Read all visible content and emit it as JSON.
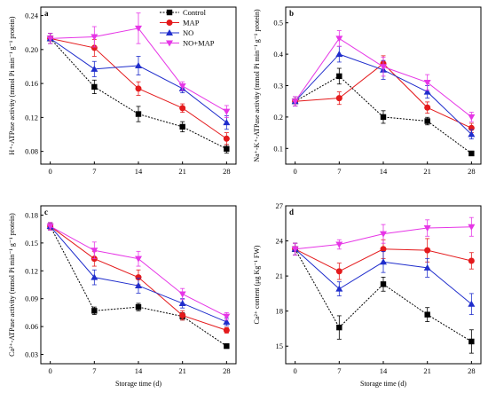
{
  "legend": {
    "entries": [
      {
        "label": "Control",
        "color": "#000000",
        "marker": "square",
        "dash": "2,1.5"
      },
      {
        "label": "MAP",
        "color": "#e41a1c",
        "marker": "circle",
        "dash": ""
      },
      {
        "label": "NO",
        "color": "#1f2dcc",
        "marker": "triangle-up",
        "dash": ""
      },
      {
        "label": "NO+MAP",
        "color": "#e636e6",
        "marker": "triangle-down",
        "dash": ""
      }
    ]
  },
  "chart_data": [
    {
      "type": "line",
      "panel": "a",
      "xlabel": "",
      "ylabel": "H⁺-ATPase activity (mmol Pi min⁻¹ g⁻¹ protein)",
      "x": [
        0,
        7,
        14,
        21,
        28
      ],
      "ylim": [
        0.065,
        0.25
      ],
      "yticks": [
        0.08,
        0.12,
        0.16,
        0.2,
        0.24
      ],
      "ytick_labels": [
        "0.08",
        "0.12",
        "0.16",
        "0.20",
        "0.24"
      ],
      "series": [
        {
          "name": "Control",
          "values": [
            0.213,
            0.156,
            0.124,
            0.109,
            0.083
          ],
          "err": [
            0.006,
            0.008,
            0.009,
            0.006,
            0.005
          ]
        },
        {
          "name": "MAP",
          "values": [
            0.213,
            0.202,
            0.154,
            0.131,
            0.095
          ],
          "err": [
            0.006,
            0.01,
            0.008,
            0.005,
            0.007
          ]
        },
        {
          "name": "NO",
          "values": [
            0.213,
            0.177,
            0.181,
            0.154,
            0.114
          ],
          "err": [
            0.006,
            0.009,
            0.011,
            0.005,
            0.008
          ]
        },
        {
          "name": "NO+MAP",
          "values": [
            0.213,
            0.215,
            0.225,
            0.157,
            0.127
          ],
          "err": [
            0.006,
            0.012,
            0.018,
            0.005,
            0.007
          ]
        }
      ]
    },
    {
      "type": "line",
      "panel": "b",
      "xlabel": "",
      "ylabel": "Na⁺-K⁺-ATPase activity (mmol Pi min⁻¹ g⁻¹ protein)",
      "x": [
        0,
        7,
        14,
        21,
        28
      ],
      "ylim": [
        0.05,
        0.55
      ],
      "yticks": [
        0.1,
        0.2,
        0.3,
        0.4,
        0.5
      ],
      "ytick_labels": [
        "0.1",
        "0.2",
        "0.3",
        "0.4",
        "0.5"
      ],
      "series": [
        {
          "name": "Control",
          "values": [
            0.25,
            0.33,
            0.2,
            0.187,
            0.084
          ],
          "err": [
            0.015,
            0.025,
            0.02,
            0.012,
            0.005
          ]
        },
        {
          "name": "MAP",
          "values": [
            0.25,
            0.26,
            0.37,
            0.23,
            0.165
          ],
          "err": [
            0.015,
            0.02,
            0.025,
            0.018,
            0.015
          ]
        },
        {
          "name": "NO",
          "values": [
            0.25,
            0.4,
            0.35,
            0.28,
            0.145
          ],
          "err": [
            0.015,
            0.025,
            0.03,
            0.02,
            0.015
          ]
        },
        {
          "name": "NO+MAP",
          "values": [
            0.25,
            0.45,
            0.36,
            0.31,
            0.2
          ],
          "err": [
            0.015,
            0.025,
            0.03,
            0.025,
            0.015
          ]
        }
      ]
    },
    {
      "type": "line",
      "panel": "c",
      "xlabel": "Storage time (d)",
      "ylabel": "Ca²⁺-ATPase activity (mmol Pi min⁻¹ g⁻¹ protein)",
      "x": [
        0,
        7,
        14,
        21,
        28
      ],
      "ylim": [
        0.02,
        0.19
      ],
      "yticks": [
        0.03,
        0.06,
        0.09,
        0.12,
        0.15,
        0.18
      ],
      "ytick_labels": [
        "0.03",
        "0.06",
        "0.09",
        "0.12",
        "0.15",
        "0.18"
      ],
      "series": [
        {
          "name": "Control",
          "values": [
            0.168,
            0.077,
            0.081,
            0.071,
            0.039
          ],
          "err": [
            0.004,
            0.004,
            0.004,
            0.004,
            0.002
          ]
        },
        {
          "name": "MAP",
          "values": [
            0.168,
            0.133,
            0.113,
            0.072,
            0.056
          ],
          "err": [
            0.004,
            0.008,
            0.008,
            0.005,
            0.003
          ]
        },
        {
          "name": "NO",
          "values": [
            0.168,
            0.113,
            0.104,
            0.085,
            0.065
          ],
          "err": [
            0.004,
            0.008,
            0.008,
            0.005,
            0.004
          ]
        },
        {
          "name": "NO+MAP",
          "values": [
            0.168,
            0.142,
            0.133,
            0.095,
            0.071
          ],
          "err": [
            0.004,
            0.009,
            0.008,
            0.006,
            0.004
          ]
        }
      ]
    },
    {
      "type": "line",
      "panel": "d",
      "xlabel": "Storage time (d)",
      "ylabel": "Ca²⁺ content (μg Kg⁻¹ FW)",
      "x": [
        0,
        7,
        14,
        21,
        28
      ],
      "ylim": [
        13.5,
        27
      ],
      "yticks": [
        15,
        18,
        21,
        24,
        27
      ],
      "ytick_labels": [
        "15",
        "18",
        "21",
        "24",
        "27"
      ],
      "series": [
        {
          "name": "Control",
          "values": [
            23.3,
            16.6,
            20.3,
            17.7,
            15.4
          ],
          "err": [
            0.5,
            1.0,
            0.6,
            0.6,
            1.0
          ]
        },
        {
          "name": "MAP",
          "values": [
            23.3,
            21.4,
            23.3,
            23.2,
            22.3
          ],
          "err": [
            0.5,
            0.7,
            0.8,
            1.0,
            0.7
          ]
        },
        {
          "name": "NO",
          "values": [
            23.3,
            19.9,
            22.2,
            21.7,
            18.6
          ],
          "err": [
            0.5,
            0.6,
            0.9,
            0.8,
            0.9
          ]
        },
        {
          "name": "NO+MAP",
          "values": [
            23.3,
            23.7,
            24.6,
            25.1,
            25.2
          ],
          "err": [
            0.5,
            0.4,
            0.8,
            0.7,
            0.8
          ]
        }
      ]
    }
  ]
}
